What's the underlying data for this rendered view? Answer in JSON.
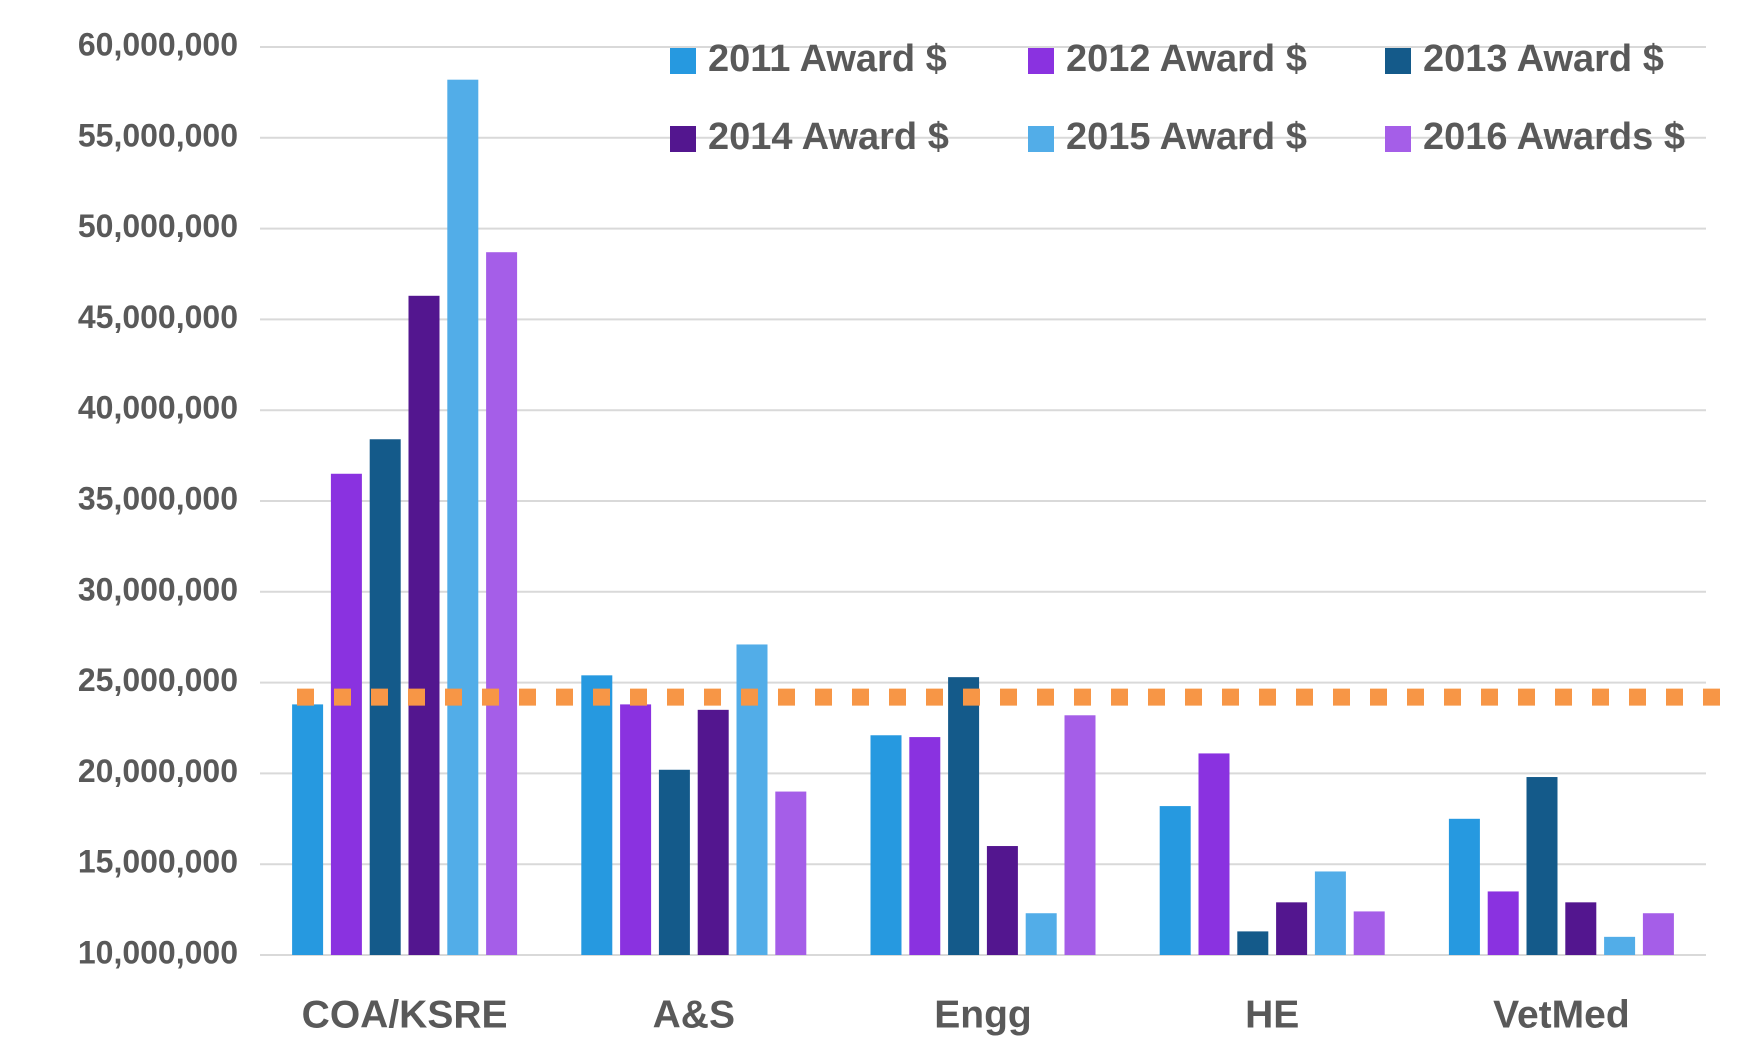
{
  "chart_data": {
    "type": "bar",
    "categories": [
      "COA/KSRE",
      "A&S",
      "Engg",
      "HE",
      "VetMed"
    ],
    "series": [
      {
        "name": "2011 Award $",
        "color": "#2699e0",
        "values": [
          23800000,
          25400000,
          22100000,
          18200000,
          17500000
        ]
      },
      {
        "name": "2012 Award $",
        "color": "#8a32e0",
        "values": [
          36500000,
          23800000,
          22000000,
          21100000,
          13500000
        ]
      },
      {
        "name": "2013 Award $",
        "color": "#145a8a",
        "values": [
          38400000,
          20200000,
          25300000,
          11300000,
          19800000
        ]
      },
      {
        "name": "2014 Award $",
        "color": "#53168f",
        "values": [
          46300000,
          23500000,
          16000000,
          12900000,
          12900000
        ]
      },
      {
        "name": "2015 Award $",
        "color": "#52ade8",
        "values": [
          58200000,
          27100000,
          12300000,
          14600000,
          11000000
        ]
      },
      {
        "name": "2016 Awards $",
        "color": "#a55ee8",
        "values": [
          48700000,
          19000000,
          23200000,
          12400000,
          12300000
        ]
      }
    ],
    "reference_line": {
      "value": 24200000,
      "color": "#f79646"
    },
    "ylim": [
      10000000,
      60000000
    ],
    "yticks": [
      {
        "value": 10000000,
        "label": "10,000,000"
      },
      {
        "value": 15000000,
        "label": "15,000,000"
      },
      {
        "value": 20000000,
        "label": "20,000,000"
      },
      {
        "value": 25000000,
        "label": "25,000,000"
      },
      {
        "value": 30000000,
        "label": "30,000,000"
      },
      {
        "value": 35000000,
        "label": "35,000,000"
      },
      {
        "value": 40000000,
        "label": "40,000,000"
      },
      {
        "value": 45000000,
        "label": "45,000,000"
      },
      {
        "value": 50000000,
        "label": "50,000,000"
      },
      {
        "value": 55000000,
        "label": "55,000,000"
      },
      {
        "value": 60000000,
        "label": "60,000,000"
      }
    ],
    "grid": true,
    "legend": "top"
  }
}
